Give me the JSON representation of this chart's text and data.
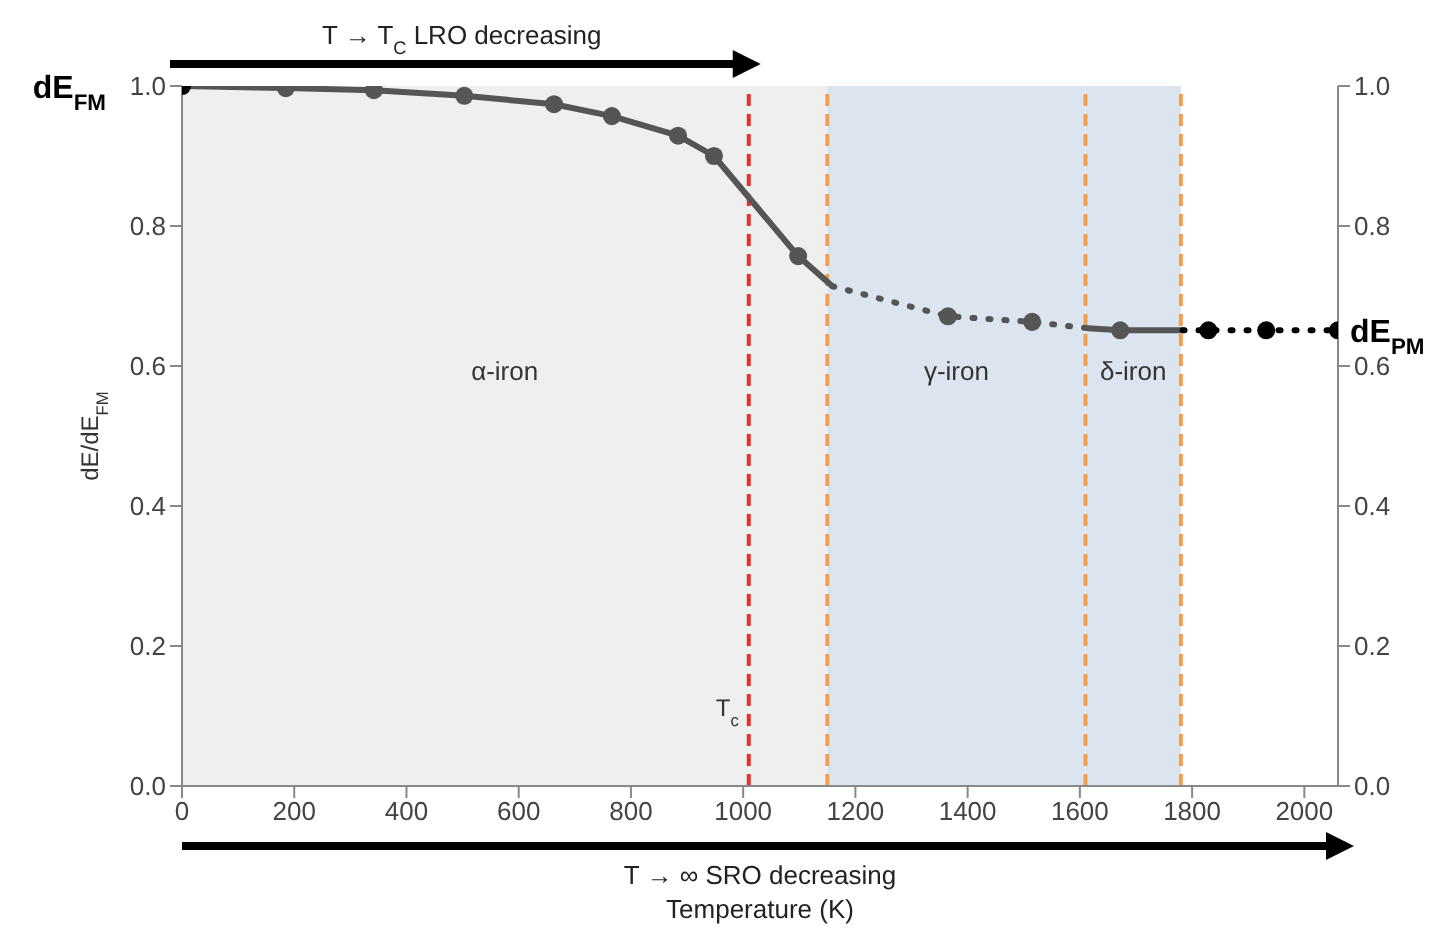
{
  "chart_data": {
    "type": "line",
    "xlabel": "Temperature (K)",
    "ylabel": "dE/dE$_{FM}$",
    "xlim": [
      0,
      2060
    ],
    "xticks": [
      0,
      200,
      400,
      600,
      800,
      1000,
      1200,
      1400,
      1600,
      1800,
      2000
    ],
    "ylim": [
      0,
      1
    ],
    "yticks": [
      {
        "value": 0,
        "label": "0.0"
      },
      0.2,
      0.4,
      0.6,
      0.8,
      {
        "value": 1,
        "label": "1.0"
      }
    ],
    "y2lim": [
      0,
      1
    ],
    "y2ticks": [
      {
        "value": 0,
        "label": "0.0"
      },
      0.2,
      0.4,
      0.6,
      0.8,
      {
        "value": 1,
        "label": "1.0"
      }
    ],
    "grid": false,
    "legend": false,
    "series": [
      {
        "color": "#555555",
        "line_style": "solid",
        "marker": "none",
        "x": [
          0,
          185,
          342,
          503,
          663,
          766,
          884,
          948,
          1098,
          1159
        ],
        "values": [
          1.0,
          0.997,
          0.994,
          0.986,
          0.974,
          0.957,
          0.929,
          0.9,
          0.757,
          0.714
        ]
      },
      {
        "color": "#555555",
        "line_style": "dotted",
        "marker": "none",
        "x": [
          1159,
          1365,
          1515,
          1615
        ],
        "values": [
          0.714,
          0.671,
          0.663,
          0.654
        ]
      },
      {
        "color": "#555555",
        "line_style": "solid",
        "marker": "none",
        "x": [
          1615,
          1672,
          1783
        ],
        "values": [
          0.654,
          0.651,
          0.651
        ]
      },
      {
        "color": "#000000",
        "line_style": "dotted",
        "marker": "none",
        "x": [
          1783,
          1829,
          1932,
          2060
        ],
        "values": [
          0.651,
          0.651,
          0.651,
          0.651
        ]
      },
      {
        "type": "scatter",
        "color": "#555555",
        "marker": "circle",
        "x": [
          185,
          342,
          503,
          663,
          766,
          884,
          948,
          1098,
          1365,
          1515,
          1672
        ],
        "values": [
          0.997,
          0.994,
          0.986,
          0.974,
          0.957,
          0.929,
          0.9,
          0.757,
          0.671,
          0.663,
          0.651
        ]
      },
      {
        "type": "scatter",
        "color": "#000000",
        "marker": "circle",
        "x": [
          0,
          1829,
          1932,
          2060
        ],
        "values": [
          1.0,
          0.651,
          0.651,
          0.651
        ]
      }
    ],
    "bands": [
      {
        "axis": "x",
        "from": 0,
        "to": 1150,
        "label": "α-iron",
        "color": "#efefef"
      },
      {
        "axis": "x",
        "from": 1150,
        "to": 1610,
        "label": "γ-iron",
        "color": "#dce4f0"
      },
      {
        "axis": "x",
        "from": 1610,
        "to": 1780,
        "label": "δ-iron",
        "color": "#dce4f0"
      }
    ],
    "ref_lines": [
      {
        "axis": "x",
        "value": 1010,
        "label": "T$_{c}$",
        "color": "#e8322d",
        "line_style": "dashed"
      },
      {
        "axis": "x",
        "value": 1150,
        "label": null,
        "color": "#f0a050",
        "line_style": "dashed"
      },
      {
        "axis": "x",
        "value": 1610,
        "label": null,
        "color": "#f0a050",
        "line_style": "dashed"
      },
      {
        "axis": "x",
        "value": 1780,
        "label": null,
        "color": "#f0a050",
        "line_style": "dashed"
      }
    ],
    "annotations": [
      {
        "text": "dE$_{FM}$",
        "x": 0,
        "y": 1.0
      },
      {
        "text": "dE$_{PM}$",
        "x": 2060,
        "y": 0.651
      },
      "T → T$_{C}$  LRO decreasing",
      "T → ∞  SRO decreasing"
    ]
  }
}
